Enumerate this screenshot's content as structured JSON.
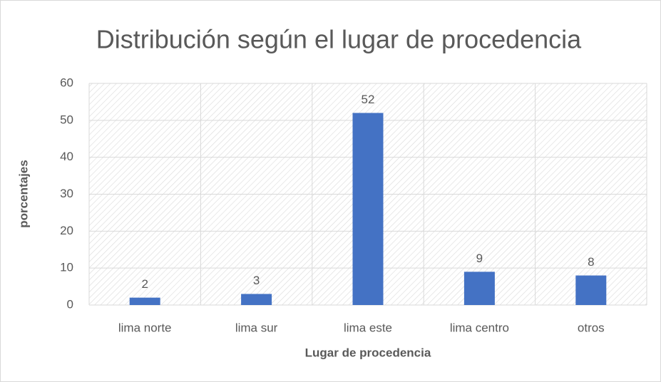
{
  "chart_data": {
    "type": "bar",
    "title": "Distribución según el lugar de procedencia",
    "x_label": "Lugar de procedencia",
    "y_label": "porcentajes",
    "categories": [
      "lima norte",
      "lima sur",
      "lima este",
      "lima centro",
      "otros"
    ],
    "values": [
      2,
      3,
      52,
      9,
      8
    ],
    "color": "#4472c4",
    "ylim": [
      0,
      60
    ],
    "yticks": [
      0,
      10,
      20,
      30,
      40,
      50,
      60
    ],
    "grid": true
  }
}
